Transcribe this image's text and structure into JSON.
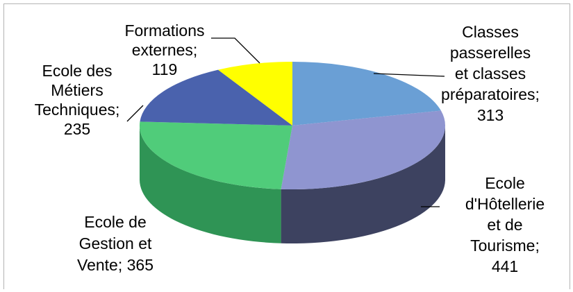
{
  "chart_data": {
    "type": "pie",
    "title": "",
    "data_labels_format": "category; value",
    "slices": [
      {
        "label": "Classes passerelles et classes préparatoires",
        "value": 313,
        "color": "#6a9fd5",
        "side_color": "#3d6fa6",
        "label_lines": [
          "Classes",
          "passerelles",
          "et classes",
          "préparatoires;",
          "313"
        ]
      },
      {
        "label": "Ecole d'Hôtellerie et de Tourisme",
        "value": 441,
        "color": "#8f95d0",
        "side_color": "#3d4260",
        "label_lines": [
          "Ecole",
          "d'Hôtellerie",
          "et de",
          "Tourisme;",
          "441"
        ]
      },
      {
        "label": "Ecole de Gestion et Vente",
        "value": 365,
        "color": "#50cc7a",
        "side_color": "#2f9455",
        "label_lines": [
          "Ecole de",
          "Gestion et",
          "Vente; 365"
        ]
      },
      {
        "label": "Ecole des Métiers Techniques",
        "value": 235,
        "color": "#4a62ad",
        "side_color": "#2e4080",
        "label_lines": [
          "Ecole des",
          "Métiers",
          "Techniques;",
          "235"
        ]
      },
      {
        "label": "Formations externes",
        "value": 119,
        "color": "#ffff00",
        "side_color": "#b3b300",
        "label_lines": [
          "Formations",
          "externes;",
          "119"
        ]
      }
    ]
  }
}
